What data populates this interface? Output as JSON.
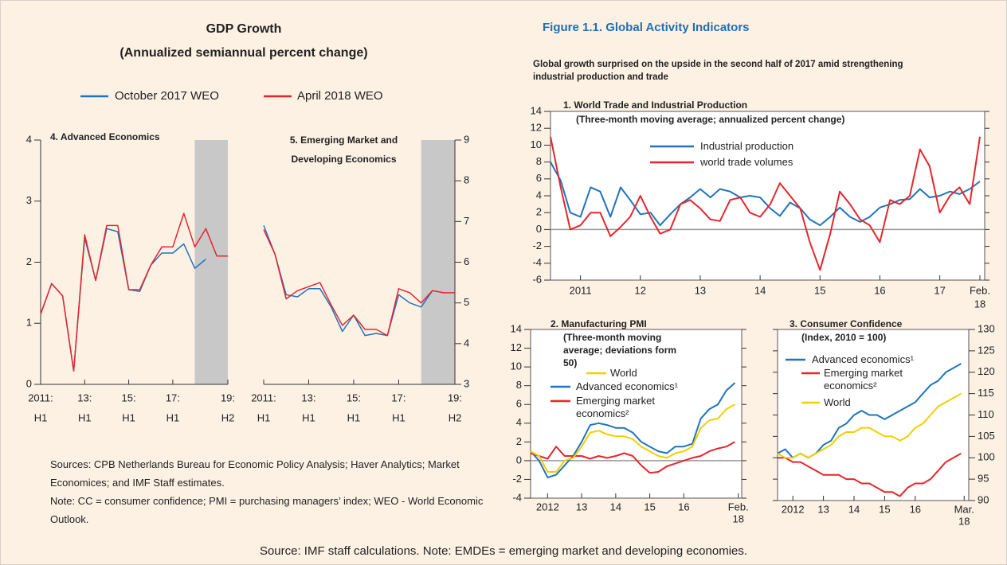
{
  "left_header": {
    "title": "GDP Growth",
    "subtitle": "(Annualized semiannual percent change)"
  },
  "figure": {
    "title": "Figure 1.1. Global Activity Indicators",
    "subtitle": "Global growth surprised on the upside in the second half of 2017 amid strengthening industrial production and trade"
  },
  "sources": "Sources: CPB Netherlands Bureau for Economic Policy Analysis; Haver Analytics; Market Economices; and IMF Staff estimates.",
  "note": "Note: CC = consumer confidence; PMI = purchasing managers’ index; WEO - World Economic Outlook.",
  "footer": "Source: IMF staff calculations. Note: EMDEs = emerging market and developing economies.",
  "chart_data": [
    {
      "type": "line",
      "title": "4. Advanced Economics",
      "x": [
        2011,
        2011.5,
        2012,
        2012.5,
        2013,
        2013.5,
        2014,
        2014.5,
        2015,
        2015.5,
        2016,
        2016.5,
        2017,
        2017.5,
        2018,
        2018.5,
        2019,
        2019.5
      ],
      "series": [
        {
          "name": "October 2017 WEO",
          "color": "#1f74bd",
          "values": [
            1.15,
            1.65,
            1.45,
            0.22,
            2.4,
            1.7,
            2.55,
            2.5,
            1.55,
            1.52,
            1.95,
            2.15,
            2.15,
            2.3,
            1.9,
            2.05,
            null,
            null
          ]
        },
        {
          "name": "April 2018 WEO",
          "color": "#e6262c",
          "values": [
            1.15,
            1.65,
            1.45,
            0.22,
            2.45,
            1.7,
            2.6,
            2.6,
            1.55,
            1.55,
            1.95,
            2.25,
            2.25,
            2.8,
            2.25,
            2.55,
            2.1,
            2.1
          ]
        }
      ],
      "xlim": [
        2011,
        2019.5
      ],
      "xticks": [
        {
          "value": 2011,
          "label": "2011:"
        },
        {
          "value": 2013,
          "label": "13:"
        },
        {
          "value": 2015,
          "label": "15:"
        },
        {
          "value": 2017,
          "label": "17:"
        },
        {
          "value": 2019.5,
          "label": "19:"
        }
      ],
      "xtick_sublabels": [
        "H1",
        "H1",
        "H1",
        "H1",
        "H2"
      ],
      "ylim": [
        0,
        4
      ],
      "yticks": [
        0,
        1,
        2,
        3,
        4
      ],
      "y_axis_side": "left",
      "shade": [
        2018,
        2019.5
      ],
      "shade_color": "#c8c8c8"
    },
    {
      "type": "line",
      "title": "5. Emerging Market and Developing Economics",
      "x": [
        2011,
        2011.5,
        2012,
        2012.5,
        2013,
        2013.5,
        2014,
        2014.5,
        2015,
        2015.5,
        2016,
        2016.5,
        2017,
        2017.5,
        2018,
        2018.5,
        2019,
        2019.5
      ],
      "series": [
        {
          "color": "#1f74bd",
          "values": [
            6.9,
            6.2,
            5.2,
            5.15,
            5.35,
            5.35,
            4.9,
            4.3,
            4.7,
            4.2,
            4.25,
            4.2,
            5.2,
            5.0,
            4.9,
            5.3,
            null,
            null
          ]
        },
        {
          "color": "#e6262c",
          "values": [
            6.8,
            6.2,
            5.1,
            5.3,
            5.4,
            5.5,
            4.95,
            4.45,
            4.7,
            4.35,
            4.35,
            4.2,
            5.35,
            5.25,
            5.0,
            5.3,
            5.25,
            5.25
          ]
        }
      ],
      "xlim": [
        2011,
        2019.5
      ],
      "xticks": [
        {
          "value": 2011,
          "label": "2011:"
        },
        {
          "value": 2013,
          "label": "13:"
        },
        {
          "value": 2015,
          "label": "15:"
        },
        {
          "value": 2017,
          "label": "17:"
        },
        {
          "value": 2019.5,
          "label": "19:"
        }
      ],
      "xtick_sublabels": [
        "H1",
        "H1",
        "H1",
        "H1",
        "H2"
      ],
      "ylim": [
        3,
        9
      ],
      "yticks": [
        3,
        4,
        5,
        6,
        7,
        8,
        9
      ],
      "y_axis_side": "right",
      "shade": [
        2018,
        2019.5
      ],
      "shade_color": "#c8c8c8"
    },
    {
      "type": "line",
      "title": "1. World Trade and Industrial Production",
      "subtitle": "(Three-month moving average; annualized percent change)",
      "x": [
        2011,
        2011.17,
        2011.33,
        2011.5,
        2011.67,
        2011.83,
        2012,
        2012.17,
        2012.33,
        2012.5,
        2012.67,
        2012.83,
        2013,
        2013.17,
        2013.33,
        2013.5,
        2013.67,
        2013.83,
        2014,
        2014.17,
        2014.33,
        2014.5,
        2014.67,
        2014.83,
        2015,
        2015.17,
        2015.33,
        2015.5,
        2015.67,
        2015.83,
        2016,
        2016.17,
        2016.33,
        2016.5,
        2016.67,
        2016.83,
        2017,
        2017.17,
        2017.33,
        2017.5,
        2017.67,
        2017.83,
        2018,
        2018.17
      ],
      "series": [
        {
          "name": "Industrial production",
          "color": "#1f74bd",
          "values": [
            8,
            5.8,
            2,
            1.5,
            5,
            4.5,
            1.5,
            5,
            3.5,
            1.8,
            2,
            0.5,
            1.8,
            3,
            3.8,
            4.8,
            3.8,
            4.8,
            4.5,
            3.8,
            4,
            3.8,
            2.5,
            1.6,
            3.2,
            2.5,
            1.2,
            0.5,
            1.5,
            2.6,
            1.5,
            0.9,
            1.5,
            2.6,
            3,
            3.5,
            3.6,
            4.8,
            3.8,
            4,
            4.5,
            4.2,
            4.8,
            5.7
          ]
        },
        {
          "name": "world trade volumes",
          "color": "#e6262c",
          "values": [
            11,
            5,
            0,
            0.5,
            2,
            2,
            -0.8,
            0.3,
            1.5,
            4,
            1.5,
            -0.5,
            0,
            3,
            3.5,
            2.5,
            1.2,
            1,
            3.5,
            3.8,
            2,
            1.5,
            3,
            5.5,
            4,
            2.5,
            -1.5,
            -4.8,
            -0.5,
            4.5,
            3,
            1.2,
            0.5,
            -1.5,
            3.5,
            3,
            4,
            9.5,
            7.5,
            2,
            4,
            5,
            3,
            11
          ]
        }
      ],
      "xlim": [
        2011,
        2018.25
      ],
      "xticks": [
        {
          "value": 2011.5,
          "label": "2011"
        },
        {
          "value": 2012.5,
          "label": "12"
        },
        {
          "value": 2013.5,
          "label": "13"
        },
        {
          "value": 2014.5,
          "label": "14"
        },
        {
          "value": 2015.5,
          "label": "15"
        },
        {
          "value": 2016.5,
          "label": "16"
        },
        {
          "value": 2017.5,
          "label": "17"
        },
        {
          "value": 2018.17,
          "label": "Feb."
        }
      ],
      "xtick_sublabels": [
        null,
        null,
        null,
        null,
        null,
        null,
        null,
        "18"
      ],
      "ylim": [
        -6,
        14
      ],
      "yticks": [
        -6,
        -4,
        -2,
        0,
        2,
        4,
        6,
        8,
        10,
        12,
        14
      ],
      "y_axis_side": "left",
      "zero_line": true
    },
    {
      "type": "line",
      "title": "2. Manufacturing PMI",
      "subtitle": "(Three-month moving average; deviations form 50)",
      "x": [
        2012,
        2012.25,
        2012.5,
        2012.75,
        2013,
        2013.25,
        2013.5,
        2013.75,
        2014,
        2014.25,
        2014.5,
        2014.75,
        2015,
        2015.25,
        2015.5,
        2015.75,
        2016,
        2016.25,
        2016.5,
        2016.75,
        2017,
        2017.25,
        2017.5,
        2017.75,
        2018
      ],
      "series": [
        {
          "name": "Advanced economics¹",
          "color": "#1f74bd",
          "values": [
            1,
            0,
            -1.8,
            -1.5,
            -0.5,
            0.5,
            2,
            3.8,
            4,
            3.8,
            3.5,
            3.5,
            3,
            2,
            1.5,
            1,
            0.8,
            1.5,
            1.5,
            1.8,
            4.5,
            5.5,
            6,
            7.5,
            8.3
          ]
        },
        {
          "name": "Emerging market economics²",
          "color": "#e6262c",
          "values": [
            0.8,
            0.5,
            0.2,
            1.5,
            0.5,
            0.5,
            0.5,
            0.2,
            0.5,
            0.3,
            0.5,
            0.8,
            0.5,
            -0.5,
            -1.3,
            -1.2,
            -0.6,
            -0.3,
            0,
            0.3,
            0.5,
            1,
            1.3,
            1.5,
            2
          ]
        },
        {
          "name": "World",
          "color": "#f3cf00",
          "values": [
            1,
            0.5,
            -1.2,
            -1.2,
            0,
            0.3,
            1.5,
            3,
            3.2,
            2.8,
            2.6,
            2.6,
            2.3,
            1.5,
            1,
            0.5,
            0.3,
            0.8,
            1,
            1.5,
            3.5,
            4.3,
            4.5,
            5.5,
            6
          ]
        }
      ],
      "xlim": [
        2012,
        2018.2
      ],
      "xticks": [
        {
          "value": 2012.5,
          "label": "2012"
        },
        {
          "value": 2013.5,
          "label": "13"
        },
        {
          "value": 2014.5,
          "label": "14"
        },
        {
          "value": 2015.5,
          "label": "15"
        },
        {
          "value": 2016.5,
          "label": "16"
        },
        {
          "value": 2018.1,
          "label": "Feb."
        }
      ],
      "xtick_sublabels": [
        null,
        null,
        null,
        null,
        null,
        "18"
      ],
      "ylim": [
        -4,
        14
      ],
      "yticks": [
        -4,
        -2,
        0,
        2,
        4,
        6,
        8,
        10,
        12,
        14
      ],
      "y_axis_side": "left",
      "zero_line": true
    },
    {
      "type": "line",
      "title": "3. Consumer Confidence",
      "subtitle": "(Index, 2010 = 100)",
      "x": [
        2012,
        2012.25,
        2012.5,
        2012.75,
        2013,
        2013.25,
        2013.5,
        2013.75,
        2014,
        2014.25,
        2014.5,
        2014.75,
        2015,
        2015.25,
        2015.5,
        2015.75,
        2016,
        2016.25,
        2016.5,
        2016.75,
        2017,
        2017.25,
        2017.5,
        2017.75,
        2018
      ],
      "series": [
        {
          "name": "Advanced economics¹",
          "color": "#1f74bd",
          "values": [
            101,
            102,
            100,
            101,
            100,
            101,
            103,
            104,
            107,
            108,
            110,
            111,
            110,
            110,
            109,
            110,
            111,
            112,
            113,
            115,
            117,
            118,
            120,
            121,
            122
          ]
        },
        {
          "name": "Emerging market economics²",
          "color": "#e6262c",
          "values": [
            100,
            100,
            99,
            99,
            98,
            97,
            96,
            96,
            96,
            95,
            95,
            94,
            94,
            93,
            92,
            92,
            91,
            93,
            94,
            94,
            95,
            97,
            99,
            100,
            101
          ]
        },
        {
          "name": "World",
          "color": "#f3cf00",
          "values": [
            101,
            100,
            100,
            101,
            100,
            101,
            102,
            103,
            105,
            106,
            106,
            107,
            107,
            106,
            105,
            105,
            104,
            105,
            107,
            108,
            110,
            112,
            113,
            114,
            115
          ]
        }
      ],
      "xlim": [
        2012,
        2018.25
      ],
      "xticks": [
        {
          "value": 2012.5,
          "label": "2012"
        },
        {
          "value": 2013.5,
          "label": "13"
        },
        {
          "value": 2014.5,
          "label": "14"
        },
        {
          "value": 2015.5,
          "label": "15"
        },
        {
          "value": 2016.5,
          "label": "16"
        },
        {
          "value": 2018.1,
          "label": "Mar."
        }
      ],
      "xtick_sublabels": [
        null,
        null,
        null,
        null,
        null,
        "18"
      ],
      "ylim": [
        90,
        130
      ],
      "yticks": [
        90,
        95,
        100,
        105,
        110,
        115,
        120,
        125,
        130
      ],
      "y_axis_side": "right"
    }
  ]
}
